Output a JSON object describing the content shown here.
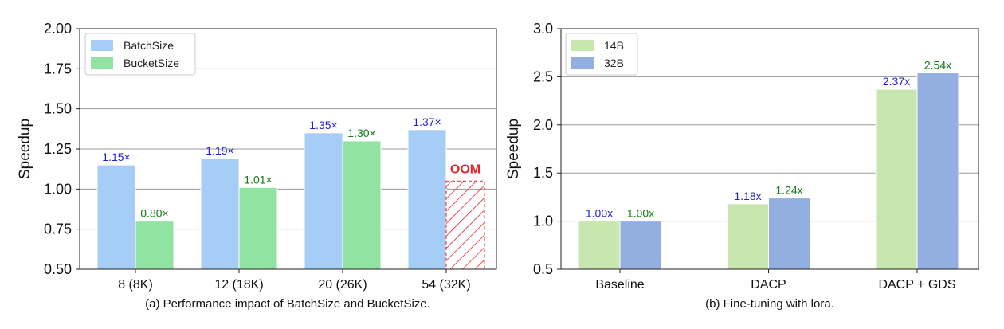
{
  "chart_data": [
    {
      "type": "bar",
      "caption": "(a) Performance impact of BatchSize and BucketSize.",
      "ylabel": "Speedup",
      "ylim": [
        0.5,
        2.0
      ],
      "yticks": [
        "0.50",
        "0.75",
        "1.00",
        "1.25",
        "1.50",
        "1.75",
        "2.00"
      ],
      "categories": [
        "8 (8K)",
        "12 (18K)",
        "20 (26K)",
        "54 (32K)"
      ],
      "series": [
        {
          "name": "BatchSize",
          "color": "#a6cdf5",
          "label_color": "#1f1fd0",
          "values": [
            1.15,
            1.19,
            1.35,
            1.37
          ],
          "labels": [
            "1.15×",
            "1.19×",
            "1.35×",
            "1.37×"
          ]
        },
        {
          "name": "BucketSize",
          "color": "#90e3a0",
          "label_color": "#137a13",
          "values": [
            0.8,
            1.01,
            1.3,
            null
          ],
          "labels": [
            "0.80×",
            "1.01×",
            "1.30×",
            null
          ]
        }
      ],
      "oom": {
        "category_index": 3,
        "series_index": 1,
        "label": "OOM",
        "color": "#e8222b",
        "hatch_top": 1.05
      },
      "legend_position": "top-left",
      "grid": "horizontal"
    },
    {
      "type": "bar",
      "caption": "(b) Fine-tuning with lora.",
      "ylabel": "Speedup",
      "ylim": [
        0.5,
        3.0
      ],
      "yticks": [
        "0.5",
        "1.0",
        "1.5",
        "2.0",
        "2.5",
        "3.0"
      ],
      "categories": [
        "Baseline",
        "DACP",
        "DACP + GDS"
      ],
      "series": [
        {
          "name": "14B",
          "color": "#c8e6b0",
          "label_color": "#1f1fd0",
          "values": [
            1.0,
            1.18,
            2.37
          ],
          "labels": [
            "1.00x",
            "1.18x",
            "2.37x"
          ]
        },
        {
          "name": "32B",
          "color": "#93aee0",
          "label_color": "#137a13",
          "values": [
            1.0,
            1.24,
            2.54
          ],
          "labels": [
            "1.00x",
            "1.24x",
            "2.54x"
          ]
        }
      ],
      "legend_position": "top-left",
      "grid": "horizontal"
    }
  ]
}
